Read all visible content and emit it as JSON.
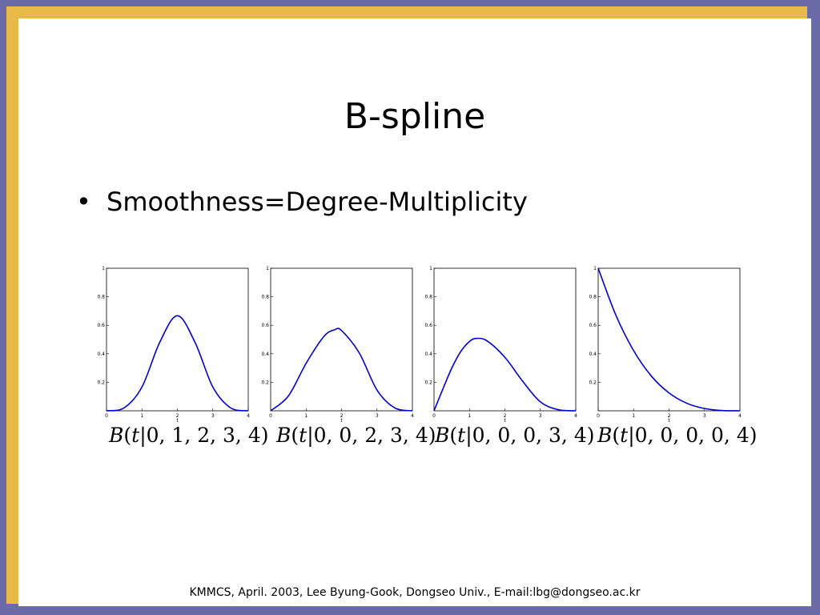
{
  "slide": {
    "title": "B-spline",
    "bullet": "Smoothness=Degree-Multiplicity",
    "footer": "KMMCS, April. 2003, Lee  Byung-Gook, Dongseo Univ., E-mail:lbg@dongseo.ac.kr",
    "colors": {
      "border": "#e8b848",
      "background": "#6b6ba8",
      "curve": "#0000cc"
    }
  },
  "chart_data": [
    {
      "type": "line",
      "caption": {
        "fn": "B",
        "var": "t",
        "knots": "0, 1, 2, 3, 4"
      },
      "xlabel": "t",
      "ylabel": "",
      "xlim": [
        0,
        4
      ],
      "ylim": [
        0,
        1
      ],
      "x_ticks": [
        "0",
        "1",
        "2",
        "3",
        "4"
      ],
      "y_ticks": [
        "0.2",
        "0.4",
        "0.6",
        "0.8",
        "1"
      ],
      "series": [
        {
          "x": [
            0,
            0.5,
            1,
            1.5,
            2,
            2.5,
            3,
            3.5,
            4
          ],
          "y": [
            0,
            0.021,
            0.167,
            0.479,
            0.667,
            0.479,
            0.167,
            0.021,
            0
          ]
        }
      ]
    },
    {
      "type": "line",
      "caption": {
        "fn": "B",
        "var": "t",
        "knots": "0, 0, 2, 3, 4"
      },
      "xlabel": "t",
      "ylabel": "",
      "xlim": [
        0,
        4
      ],
      "ylim": [
        0,
        1
      ],
      "x_ticks": [
        "0",
        "1",
        "2",
        "3",
        "4"
      ],
      "y_ticks": [
        "0.2",
        "0.4",
        "0.6",
        "0.8",
        "1"
      ],
      "series": [
        {
          "x": [
            0,
            0.5,
            1,
            1.5,
            1.8,
            2,
            2.5,
            3,
            3.5,
            4
          ],
          "y": [
            0,
            0.104,
            0.333,
            0.521,
            0.568,
            0.563,
            0.406,
            0.146,
            0.021,
            0
          ]
        }
      ]
    },
    {
      "type": "line",
      "caption": {
        "fn": "B",
        "var": "t",
        "knots": "0, 0, 0, 3, 4"
      },
      "xlabel": "t",
      "ylabel": "",
      "xlim": [
        0,
        4
      ],
      "ylim": [
        0,
        1
      ],
      "x_ticks": [
        "0",
        "1",
        "2",
        "3",
        "4"
      ],
      "y_ticks": [
        "0.2",
        "0.4",
        "0.6",
        "0.8",
        "1"
      ],
      "series": [
        {
          "x": [
            0,
            0.25,
            0.5,
            0.75,
            1,
            1.2,
            1.5,
            2,
            2.5,
            3,
            3.5,
            4
          ],
          "y": [
            0,
            0.153,
            0.299,
            0.414,
            0.486,
            0.508,
            0.49,
            0.375,
            0.208,
            0.063,
            0.008,
            0
          ]
        }
      ]
    },
    {
      "type": "line",
      "caption": {
        "fn": "B",
        "var": "t",
        "knots": "0, 0, 0, 0, 4"
      },
      "xlabel": "t",
      "ylabel": "",
      "xlim": [
        0,
        4
      ],
      "ylim": [
        0,
        1
      ],
      "x_ticks": [
        "0",
        "1",
        "2",
        "3",
        "4"
      ],
      "y_ticks": [
        "0.2",
        "0.4",
        "0.6",
        "0.8",
        "1"
      ],
      "series": [
        {
          "x": [
            0,
            0.5,
            1,
            1.5,
            2,
            2.5,
            3,
            3.5,
            4
          ],
          "y": [
            1,
            0.67,
            0.422,
            0.244,
            0.125,
            0.053,
            0.016,
            0.002,
            0
          ]
        }
      ]
    }
  ]
}
